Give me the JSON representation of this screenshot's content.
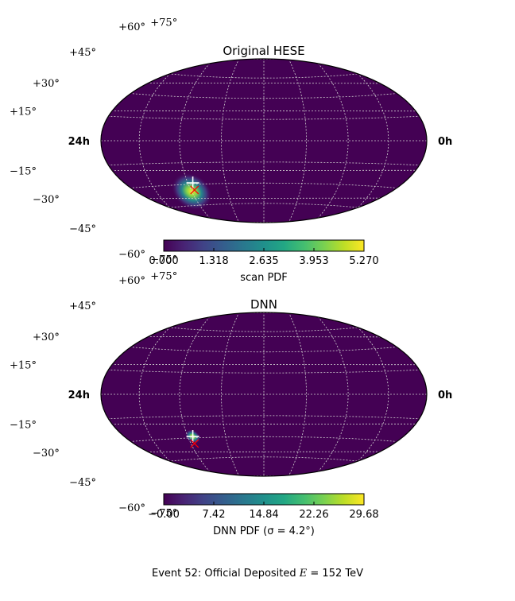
{
  "footer": {
    "prefix": "Event 52:  Official Deposited ",
    "var": "E",
    "suffix": " = 152 TeV"
  },
  "chart_data": [
    {
      "type": "heatmap",
      "projection": "hammer-aitoff",
      "title": "Original HESE",
      "colormap": "viridis",
      "ra_labels": [
        "24h",
        "0h"
      ],
      "dec_ticks": [
        "+75°",
        "+60°",
        "+45°",
        "+30°",
        "+15°",
        "−15°",
        "−30°",
        "−45°",
        "−60°",
        "−75°"
      ],
      "grid": true,
      "colorbar": {
        "label": "scan PDF",
        "ticks": [
          "0.000",
          "1.318",
          "2.635",
          "3.953",
          "5.270"
        ],
        "min": 0.0,
        "max": 5.27
      },
      "hotspot": {
        "ra_deg": 60,
        "dec_deg": -35,
        "sigma_ra_deg": 9,
        "sigma_dec_deg": 7,
        "peak_value": 5.27
      },
      "markers": [
        {
          "name": "best-fit",
          "ra_deg": 56,
          "dec_deg": -29,
          "symbol": "+",
          "color": "#ffffff"
        },
        {
          "name": "true-direction",
          "ra_deg": 57,
          "dec_deg": -34,
          "symbol": "x",
          "color": "#ff0000"
        }
      ]
    },
    {
      "type": "heatmap",
      "projection": "hammer-aitoff",
      "title": "DNN",
      "colormap": "viridis",
      "ra_labels": [
        "24h",
        "0h"
      ],
      "dec_ticks": [
        "+75°",
        "+60°",
        "+45°",
        "+30°",
        "+15°",
        "−15°",
        "−30°",
        "−45°",
        "−60°",
        "−75°"
      ],
      "grid": true,
      "colorbar": {
        "label": "DNN PDF (σ = 4.2°)",
        "ticks": [
          "−0.00",
          "7.42",
          "14.84",
          "22.26",
          "29.68"
        ],
        "min": 0.0,
        "max": 29.68
      },
      "hotspot": {
        "ra_deg": 56,
        "dec_deg": -29,
        "sigma_ra_deg": 3.5,
        "sigma_dec_deg": 2.5,
        "peak_value": 29.68
      },
      "markers": [
        {
          "name": "best-fit",
          "ra_deg": 56,
          "dec_deg": -29,
          "symbol": "+",
          "color": "#ffffff"
        },
        {
          "name": "true-direction",
          "ra_deg": 57,
          "dec_deg": -34,
          "symbol": "x",
          "color": "#ff0000"
        }
      ]
    }
  ]
}
